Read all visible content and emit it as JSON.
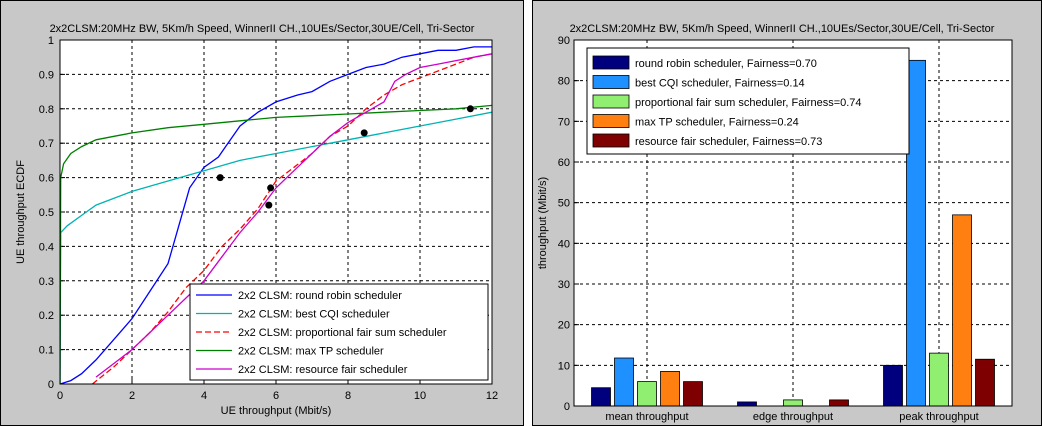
{
  "chart_data": [
    {
      "type": "line",
      "title": "2x2CLSM:20MHz BW, 5Km/h Speed, WinnerII CH.,10UEs/Sector,30UE/Cell, Tri-Sector",
      "xlabel": "UE throughput (Mbit/s)",
      "ylabel": "UE throughput ECDF",
      "xlim": [
        0,
        12
      ],
      "ylim": [
        0,
        1
      ],
      "xticks": [
        "0",
        "2",
        "4",
        "6",
        "8",
        "10",
        "12"
      ],
      "yticks": [
        "0",
        "0.1",
        "0.2",
        "0.3",
        "0.4",
        "0.5",
        "0.6",
        "0.7",
        "0.8",
        "0.9",
        "1"
      ],
      "grid": true,
      "legend_position": "bottom-right",
      "series": [
        {
          "name": "2x2 CLSM: round robin scheduler",
          "color": "#0000ff",
          "dash": "solid",
          "x": [
            0,
            0.3,
            0.6,
            1.0,
            1.5,
            2.0,
            2.5,
            3.0,
            3.3,
            3.6,
            4.0,
            4.4,
            4.6,
            5.0,
            5.5,
            6.0,
            6.6,
            7.0,
            7.5,
            8.0,
            8.5,
            9.0,
            9.5,
            10.0,
            10.5,
            11.0,
            11.5,
            12.0
          ],
          "y": [
            0,
            0.01,
            0.03,
            0.07,
            0.13,
            0.19,
            0.27,
            0.35,
            0.46,
            0.57,
            0.63,
            0.66,
            0.69,
            0.75,
            0.79,
            0.82,
            0.84,
            0.85,
            0.88,
            0.9,
            0.92,
            0.93,
            0.95,
            0.96,
            0.97,
            0.97,
            0.98,
            0.98
          ]
        },
        {
          "name": "2x2 CLSM: best CQI scheduler",
          "color": "#00b3b3",
          "dash": "solid",
          "x": [
            0,
            0.02,
            0.2,
            0.6,
            1.0,
            2.0,
            3.0,
            4.0,
            5.0,
            6.0,
            7.0,
            8.0,
            9.0,
            10.0,
            11.0,
            12.0
          ],
          "y": [
            0,
            0.44,
            0.46,
            0.49,
            0.52,
            0.56,
            0.59,
            0.62,
            0.65,
            0.67,
            0.69,
            0.71,
            0.73,
            0.75,
            0.77,
            0.79
          ]
        },
        {
          "name": "2x2 CLSM: proportional fair sum scheduler",
          "color": "#ff0000",
          "dash": "dashed",
          "x": [
            0.9,
            1.5,
            2.0,
            2.5,
            3.0,
            3.5,
            4.0,
            4.5,
            5.0,
            5.5,
            6.0,
            6.5,
            7.0,
            7.5,
            8.0,
            8.5,
            9.0,
            9.5,
            10.0,
            10.5,
            11.0,
            11.5,
            12.0
          ],
          "y": [
            0,
            0.05,
            0.1,
            0.15,
            0.21,
            0.28,
            0.33,
            0.4,
            0.45,
            0.51,
            0.59,
            0.63,
            0.67,
            0.72,
            0.75,
            0.8,
            0.84,
            0.87,
            0.89,
            0.91,
            0.93,
            0.95,
            0.96
          ]
        },
        {
          "name": "2x2 CLSM: max TP scheduler",
          "color": "#008000",
          "dash": "solid",
          "x": [
            0,
            0.02,
            0.1,
            0.3,
            0.6,
            1.0,
            1.5,
            2.0,
            3.0,
            4.0,
            5.0,
            6.0,
            7.0,
            8.0,
            9.0,
            10.0,
            11.0,
            12.0
          ],
          "y": [
            0,
            0.6,
            0.64,
            0.67,
            0.69,
            0.71,
            0.72,
            0.73,
            0.745,
            0.755,
            0.765,
            0.775,
            0.78,
            0.785,
            0.79,
            0.795,
            0.8,
            0.81
          ]
        },
        {
          "name": "2x2 CLSM: resource fair scheduler",
          "color": "#cc00cc",
          "dash": "solid",
          "x": [
            1.0,
            1.5,
            2.0,
            2.5,
            3.0,
            3.5,
            4.0,
            4.5,
            5.0,
            5.5,
            6.0,
            6.5,
            7.0,
            7.5,
            8.0,
            8.5,
            9.0,
            9.3,
            9.6,
            10.0,
            10.5,
            11.0,
            11.5,
            12.0
          ],
          "y": [
            0.02,
            0.06,
            0.1,
            0.15,
            0.2,
            0.25,
            0.3,
            0.37,
            0.44,
            0.5,
            0.57,
            0.62,
            0.67,
            0.72,
            0.76,
            0.79,
            0.82,
            0.88,
            0.9,
            0.92,
            0.93,
            0.94,
            0.95,
            0.96
          ]
        }
      ],
      "markers": {
        "color": "#000000",
        "x": [
          4.45,
          5.85,
          5.8,
          8.45,
          11.4
        ],
        "y": [
          0.6,
          0.57,
          0.52,
          0.73,
          0.8
        ]
      }
    },
    {
      "type": "bar",
      "title": "2x2CLSM:20MHz BW, 5Km/h Speed, WinnerII CH.,10UEs/Sector,30UE/Cell, Tri-Sector",
      "xlabel": "",
      "ylabel": "throughput (Mbit/s)",
      "ylim": [
        0,
        90
      ],
      "yticks": [
        "0",
        "10",
        "20",
        "30",
        "40",
        "50",
        "60",
        "70",
        "80",
        "90"
      ],
      "grid": true,
      "legend_position": "top-left",
      "categories": [
        "mean throughput",
        "edge throughput",
        "peak throughput"
      ],
      "series": [
        {
          "name": "round robin scheduler, Fairness=0.70",
          "color": "#00007f",
          "values": [
            4.5,
            1.0,
            10.0
          ]
        },
        {
          "name": "best CQI scheduler, Fairness=0.14",
          "color": "#1e90ff",
          "values": [
            11.8,
            0.0,
            85.0
          ]
        },
        {
          "name": "proportional fair sum scheduler, Fairness=0.74",
          "color": "#90ee70",
          "values": [
            6.0,
            1.5,
            13.0
          ]
        },
        {
          "name": "max TP scheduler, Fairness=0.24",
          "color": "#ff7f10",
          "values": [
            8.5,
            0.0,
            47.0
          ]
        },
        {
          "name": "resource fair scheduler, Fairness=0.73",
          "color": "#7f0000",
          "values": [
            6.0,
            1.5,
            11.5
          ]
        }
      ]
    }
  ]
}
